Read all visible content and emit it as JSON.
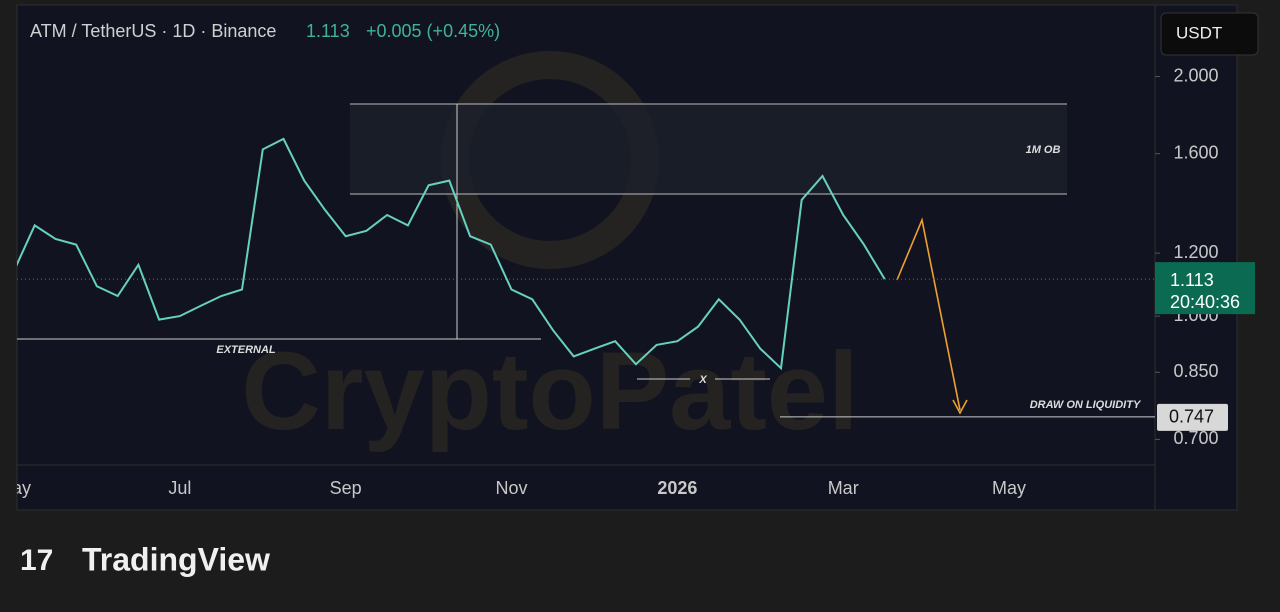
{
  "header": {
    "symbol": "ATM / TetherUS · 1D · Binance",
    "change": "+0.005 (+0.45%)",
    "currency": "USDT",
    "countdown": "20:40:36",
    "watermark": "CryptoPatel",
    "brand": "TradingView"
  },
  "annotations": {
    "ob": "1M OB",
    "external": "EXTERNAL",
    "x": "X",
    "liquidity": "DRAW ON LIQUIDITY"
  },
  "chart_data": {
    "type": "line",
    "log_scale": true,
    "categories": [
      "May",
      null,
      null,
      null,
      null,
      null,
      null,
      null,
      "Jul",
      null,
      null,
      null,
      null,
      null,
      null,
      null,
      "Sep",
      null,
      null,
      null,
      null,
      null,
      null,
      null,
      "Nov",
      null,
      null,
      null,
      null,
      null,
      null,
      null,
      "2026",
      null,
      null,
      null,
      null,
      null,
      null,
      null,
      "Mar",
      null,
      null,
      null,
      null,
      null,
      null,
      null,
      "May",
      null,
      null,
      null,
      null,
      null,
      null,
      null
    ],
    "series": [
      {
        "name": "ATM / TetherUS",
        "color": "#66d1c0",
        "values": [
          1.14,
          1.3,
          1.25,
          1.23,
          1.09,
          1.06,
          1.16,
          0.99,
          1.0,
          1.03,
          1.06,
          1.08,
          1.62,
          1.67,
          1.48,
          1.36,
          1.26,
          1.28,
          1.34,
          1.3,
          1.46,
          1.48,
          1.26,
          1.23,
          1.08,
          1.05,
          0.96,
          0.89,
          0.91,
          0.93,
          0.87,
          0.92,
          0.93,
          0.97,
          1.05,
          0.99,
          0.91,
          0.86,
          1.4,
          1.5,
          1.34,
          1.23,
          1.113,
          null,
          null,
          null,
          null,
          null,
          null,
          null,
          null,
          null,
          null,
          null,
          null,
          null
        ]
      }
    ],
    "last_price": 1.113,
    "target_price": 0.747,
    "ylim": [
      0.65,
      2.46
    ],
    "yticks": [
      {
        "value": 0.7,
        "label": "0.700"
      },
      {
        "value": 0.85,
        "label": "0.850"
      },
      {
        "value": 1,
        "label": "1.000"
      },
      {
        "value": 1.2,
        "label": "1.200"
      },
      {
        "value": 1.6,
        "label": "1.600"
      },
      {
        "value": 2,
        "label": "2.000"
      }
    ],
    "grid": false
  }
}
